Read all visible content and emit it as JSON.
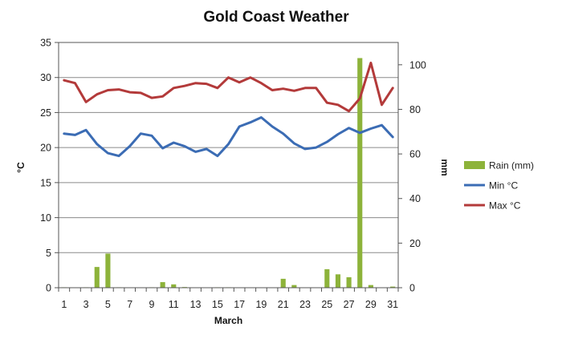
{
  "chart_data": {
    "type": "bar+line",
    "title": "Gold Coast Weather",
    "xlabel": "March",
    "ylabel_left": "°C",
    "ylabel_right": "mm",
    "x": [
      1,
      2,
      3,
      4,
      5,
      6,
      7,
      8,
      9,
      10,
      11,
      12,
      13,
      14,
      15,
      16,
      17,
      18,
      19,
      20,
      21,
      22,
      23,
      24,
      25,
      26,
      27,
      28,
      29,
      30,
      31
    ],
    "x_tick_labels": [
      "1",
      "3",
      "5",
      "7",
      "9",
      "11",
      "13",
      "15",
      "17",
      "19",
      "21",
      "23",
      "25",
      "27",
      "29",
      "31"
    ],
    "x_tick_values": [
      1,
      3,
      5,
      7,
      9,
      11,
      13,
      15,
      17,
      19,
      21,
      23,
      25,
      27,
      29,
      31
    ],
    "ylim_left": [
      0,
      35
    ],
    "yticks_left": [
      0,
      5,
      10,
      15,
      20,
      25,
      30,
      35
    ],
    "ylim_right": [
      0,
      110
    ],
    "yticks_right": [
      0,
      20,
      40,
      60,
      80,
      100
    ],
    "grid": true,
    "legend_position": "right",
    "series": [
      {
        "name": "Rain (mm)",
        "kind": "bar",
        "axis": "right",
        "color": "#8db33a",
        "values": [
          0.2,
          0,
          0.2,
          9.3,
          15.3,
          0.2,
          0,
          0,
          0.2,
          2.5,
          1.5,
          0.3,
          0,
          0,
          0.2,
          0.2,
          0,
          0,
          0,
          0,
          4.0,
          1.2,
          0,
          0,
          8.3,
          6.0,
          4.7,
          103,
          1.2,
          0,
          0.5
        ]
      },
      {
        "name": "Min °C",
        "kind": "line",
        "axis": "left",
        "color": "#3b6cb4",
        "values": [
          22.0,
          21.8,
          22.5,
          20.5,
          19.2,
          18.8,
          20.2,
          22.0,
          21.7,
          19.9,
          20.7,
          20.2,
          19.4,
          19.8,
          18.8,
          20.5,
          23.0,
          23.6,
          24.3,
          23.0,
          22.0,
          20.6,
          19.8,
          20.0,
          20.8,
          21.9,
          22.8,
          22.1,
          22.7,
          23.2,
          21.5
        ]
      },
      {
        "name": "Max °C",
        "kind": "line",
        "axis": "left",
        "color": "#b33a3a",
        "values": [
          29.6,
          29.2,
          26.5,
          27.6,
          28.2,
          28.3,
          27.9,
          27.8,
          27.1,
          27.3,
          28.5,
          28.8,
          29.2,
          29.1,
          28.5,
          30.0,
          29.3,
          30.0,
          29.2,
          28.2,
          28.4,
          28.1,
          28.5,
          28.5,
          26.4,
          26.1,
          25.2,
          27.0,
          32.1,
          26.1,
          28.5
        ]
      }
    ]
  }
}
